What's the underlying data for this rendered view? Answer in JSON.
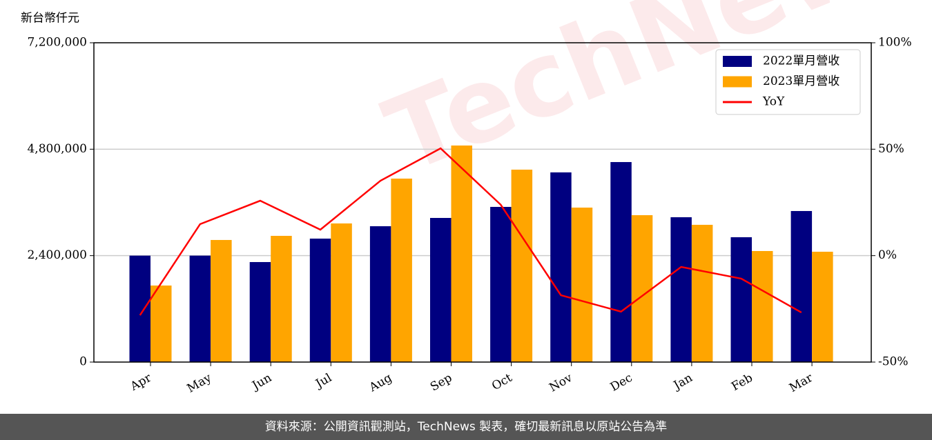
{
  "chart_data": {
    "type": "bar",
    "ylabel": "新台幣仟元",
    "watermark": "TechNews",
    "source": "資料來源：公開資訊觀測站，TechNews 製表，確切最新訊息以原站公告為準",
    "categories": [
      "Apr",
      "May",
      "Jun",
      "Jul",
      "Aug",
      "Sep",
      "Oct",
      "Nov",
      "Dec",
      "Jan",
      "Feb",
      "Mar"
    ],
    "series": [
      {
        "name": "2022單月營收",
        "type": "bar",
        "color": "#000080",
        "values": [
          2400000,
          2400000,
          2255000,
          2784000,
          3063000,
          3250000,
          3499000,
          4277000,
          4510000,
          3266000,
          2815000,
          3406000
        ]
      },
      {
        "name": "2023單月營收",
        "type": "bar",
        "color": "#ffa500",
        "values": [
          1726000,
          2753000,
          2846000,
          3126000,
          4137000,
          4883000,
          4339000,
          3483000,
          3312000,
          3095000,
          2504000,
          2488000
        ]
      },
      {
        "name": "YoY",
        "type": "line",
        "axis": "y2",
        "color": "#ff0000",
        "values": [
          -28,
          14.8,
          25.8,
          12.2,
          35.2,
          50.4,
          23.9,
          -18.6,
          -26.3,
          -5.3,
          -10.8,
          -26.7
        ]
      }
    ],
    "ylim": [
      0,
      7200000
    ],
    "yticks": [
      0,
      {
        "value": 2400000,
        "label": "2,400,000"
      },
      {
        "value": 4800000,
        "label": "4,800,000"
      },
      {
        "value": 7200000,
        "label": "7,200,000"
      }
    ],
    "y2lim": [
      -50,
      100
    ],
    "y2ticks": [
      {
        "value": -50,
        "label": "-50%"
      },
      {
        "value": 0,
        "label": "0%"
      },
      {
        "value": 50,
        "label": "50%"
      },
      {
        "value": 100,
        "label": "100%"
      }
    ],
    "grid": true,
    "legend": "upper right"
  }
}
